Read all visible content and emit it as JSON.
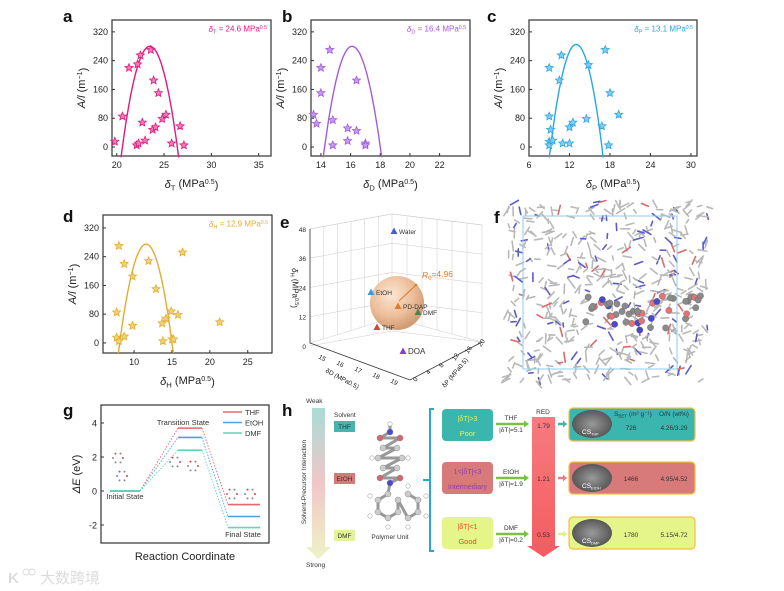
{
  "panel_labels": {
    "a": "a",
    "b": "b",
    "c": "c",
    "d": "d",
    "e": "e",
    "f": "f",
    "g": "g",
    "h": "h"
  },
  "watermark": "大数跨境",
  "chart_data": [
    {
      "id": "a",
      "type": "scatter",
      "color": "#e0197d",
      "fill": "#f27db5",
      "annotation": {
        "sym": "δ",
        "sub": "T",
        "text": " = 24.6 MPa",
        "sup": "0.5"
      },
      "xlabel": {
        "sym": "δ",
        "sub": "T",
        "text": " (MPa",
        "sup": "0.5",
        "close": ")"
      },
      "ylabel": {
        "sym": "A/l",
        "text": " (m",
        "sup": "−1",
        "close": ")"
      },
      "xlim": [
        19.5,
        36.3
      ],
      "ylim": [
        -25,
        353
      ],
      "xticks": [
        20,
        25,
        30,
        35
      ],
      "yticks": [
        0,
        80,
        160,
        240,
        320
      ],
      "fit": {
        "vertex": [
          23.5,
          280
        ],
        "roots": [
          20.6,
          26.4
        ]
      },
      "points": [
        [
          19.8,
          15
        ],
        [
          20.6,
          85
        ],
        [
          21.3,
          220
        ],
        [
          22.2,
          230
        ],
        [
          22.5,
          255
        ],
        [
          22.7,
          68
        ],
        [
          22.1,
          5
        ],
        [
          22.3,
          10
        ],
        [
          23.0,
          18
        ],
        [
          23.6,
          270
        ],
        [
          23.9,
          185
        ],
        [
          24.4,
          150
        ],
        [
          23.8,
          48
        ],
        [
          24.1,
          55
        ],
        [
          24.8,
          78
        ],
        [
          25.2,
          90
        ],
        [
          25.8,
          10
        ],
        [
          26.7,
          58
        ],
        [
          27.1,
          5
        ]
      ]
    },
    {
      "id": "b",
      "type": "scatter",
      "color": "#a25be0",
      "fill": "#c79af0",
      "annotation": {
        "sym": "δ",
        "sub": "D",
        "text": " = 16.4 MPa",
        "sup": "0.5"
      },
      "xlabel": {
        "sym": "δ",
        "sub": "D",
        "text": " (MPa",
        "sup": "0.5",
        "close": ")"
      },
      "ylabel": {
        "sym": "A/l",
        "text": " (m",
        "sup": "−1",
        "close": ")"
      },
      "xlim": [
        13.33,
        24.05
      ],
      "ylim": [
        -25,
        353
      ],
      "xticks": [
        14,
        16,
        18,
        20,
        22
      ],
      "yticks": [
        0,
        80,
        160,
        240,
        320
      ],
      "fit": {
        "vertex": [
          16.1,
          280
        ],
        "roots": [
          14.25,
          18.0
        ]
      },
      "points": [
        [
          13.5,
          90
        ],
        [
          13.7,
          65
        ],
        [
          14.0,
          220
        ],
        [
          14.0,
          150
        ],
        [
          14.6,
          270
        ],
        [
          14.8,
          75
        ],
        [
          14.8,
          5
        ],
        [
          15.8,
          52
        ],
        [
          15.8,
          17
        ],
        [
          16.4,
          185
        ],
        [
          16.4,
          45
        ],
        [
          17.0,
          10
        ],
        [
          17.0,
          5
        ]
      ]
    },
    {
      "id": "c",
      "type": "scatter",
      "color": "#2aa6e6",
      "fill": "#84cdf2",
      "annotation": {
        "sym": "δ",
        "sub": "P",
        "text": " = 13.1 MPa",
        "sup": "0.5"
      },
      "xlabel": {
        "sym": "δ",
        "sub": "P",
        "text": " (MPa",
        "sup": "0.5",
        "close": ")"
      },
      "ylabel": {
        "sym": "A/l",
        "text": " (m",
        "sup": "−1",
        "close": ")"
      },
      "xlim": [
        6,
        30.9
      ],
      "ylim": [
        -25,
        353
      ],
      "xticks": [
        6,
        12,
        18,
        24,
        30
      ],
      "yticks": [
        0,
        80,
        160,
        240,
        320
      ],
      "fit": {
        "vertex": [
          13.0,
          285
        ],
        "roots": [
          9.2,
          16.8
        ]
      },
      "points": [
        [
          9,
          220
        ],
        [
          9,
          85
        ],
        [
          9.2,
          48
        ],
        [
          9,
          15
        ],
        [
          9,
          5
        ],
        [
          9.5,
          18
        ],
        [
          10.5,
          185
        ],
        [
          10.8,
          255
        ],
        [
          11,
          10
        ],
        [
          12,
          55
        ],
        [
          12,
          10
        ],
        [
          12.5,
          68
        ],
        [
          14.5,
          78
        ],
        [
          14.8,
          228
        ],
        [
          16.8,
          58
        ],
        [
          17.3,
          270
        ],
        [
          17.8,
          5
        ],
        [
          18,
          150
        ],
        [
          19.3,
          90
        ]
      ]
    },
    {
      "id": "d",
      "type": "scatter",
      "color": "#e4ac2c",
      "fill": "#f3d27e",
      "annotation": {
        "sym": "δ",
        "sub": "H",
        "text": " = 12.9 MPa",
        "sup": "0.5"
      },
      "xlabel": {
        "sym": "δ",
        "sub": "H",
        "text": " (MPa",
        "sup": "0.5",
        "close": ")"
      },
      "ylabel": {
        "sym": "A/l",
        "text": " (m",
        "sup": "−1",
        "close": ")"
      },
      "xlim": [
        5.9,
        28.2
      ],
      "ylim": [
        -28,
        356
      ],
      "xticks": [
        10,
        15,
        20,
        25
      ],
      "yticks": [
        0,
        80,
        160,
        240,
        320
      ],
      "fit": {
        "vertex": [
          11.6,
          275
        ],
        "roots": [
          8.1,
          15.0
        ]
      },
      "points": [
        [
          7.7,
          85
        ],
        [
          7.7,
          15
        ],
        [
          8.0,
          5
        ],
        [
          8.0,
          270
        ],
        [
          8.7,
          220
        ],
        [
          8.7,
          18
        ],
        [
          9.8,
          185
        ],
        [
          9.8,
          48
        ],
        [
          11.9,
          228
        ],
        [
          12.9,
          150
        ],
        [
          13.7,
          55
        ],
        [
          13.8,
          5
        ],
        [
          14.2,
          68
        ],
        [
          14.9,
          88
        ],
        [
          15.0,
          10
        ],
        [
          15.2,
          10
        ],
        [
          15.8,
          78
        ],
        [
          16.4,
          252
        ],
        [
          21.3,
          58
        ]
      ]
    },
    {
      "id": "e",
      "type": "scatter3d",
      "zlabel": {
        "sym": "δ",
        "sub": "H",
        "text": " (MPa",
        "sup": "0.5",
        "close": ")"
      },
      "xlabel": "δD (MPa0.5)",
      "ylabel": "δP (MPa0.5)",
      "zticks": [
        0,
        12,
        24,
        36,
        48
      ],
      "xticks": [
        15,
        16,
        17,
        18,
        19
      ],
      "yticks": [
        0,
        4,
        8,
        12,
        16,
        20
      ],
      "radius": {
        "sym": "R",
        "sub": "0",
        "text": "=4.96"
      },
      "points": [
        {
          "label": "Water",
          "color": "#4a5bd6"
        },
        {
          "label": "EtOH",
          "color": "#3a9be0"
        },
        {
          "label": "PD-DAP",
          "color": "#e07a2a"
        },
        {
          "label": "DMF",
          "color": "#3e8a4e"
        },
        {
          "label": "THF",
          "color": "#d9443c"
        },
        {
          "label": "DOA",
          "color": "#8a3ad6"
        }
      ]
    },
    {
      "id": "g",
      "type": "line",
      "ylabel": {
        "sym": "ΔE",
        "text": " (eV)"
      },
      "xlabel": "Reaction Coordinate",
      "ylim": [
        -3.06,
        5.06
      ],
      "yticks": [
        4,
        2,
        0,
        -2
      ],
      "states": [
        "Initial State",
        "Transition State",
        "Final State"
      ],
      "series": [
        {
          "name": "THF",
          "color": "#e8676b",
          "values": [
            0,
            3.7,
            -0.8
          ]
        },
        {
          "name": "EtOH",
          "color": "#4aa3e0",
          "values": [
            0,
            3.15,
            -1.5
          ]
        },
        {
          "name": "DMF",
          "color": "#5fd6b8",
          "values": [
            0,
            2.4,
            -2.15
          ]
        }
      ]
    }
  ],
  "panel_h": {
    "axis": {
      "top": "Weak",
      "bottom": "Strong",
      "title": "Solvent-Precursor Interaction"
    },
    "solvent_header": "Solvent",
    "solvents": [
      "THF",
      "EtOH",
      "DMF"
    ],
    "polymer_label": "Polymer Unit",
    "red_label": "RED",
    "sbet_header": "S",
    "sbet_sub": "BET",
    "sbet_unit": " (m² g⁻¹)",
    "on_header": "O/N (wt%)",
    "rows": [
      {
        "cond": "|δT|>3",
        "quality": "Poor",
        "solvent": "THF",
        "delta": "|δT|=5.1",
        "red": "1.79",
        "cs_sub": "THF",
        "sbet": "726",
        "on": "4.26/3.29"
      },
      {
        "cond": "1<|δT|<3",
        "quality": "Intermediary",
        "solvent": "EtOH",
        "delta": "|δT|=1.9",
        "red": "1.21",
        "cs_sub": "EtOH",
        "sbet": "1466",
        "on": "4.95/4.52"
      },
      {
        "cond": "|δT|<1",
        "quality": "Good",
        "solvent": "DMF",
        "delta": "|δT|=0.2",
        "red": "0.53",
        "cs_sub": "DMF",
        "sbet": "1780",
        "on": "5.15/4.72"
      }
    ],
    "cs_text": "CS"
  }
}
